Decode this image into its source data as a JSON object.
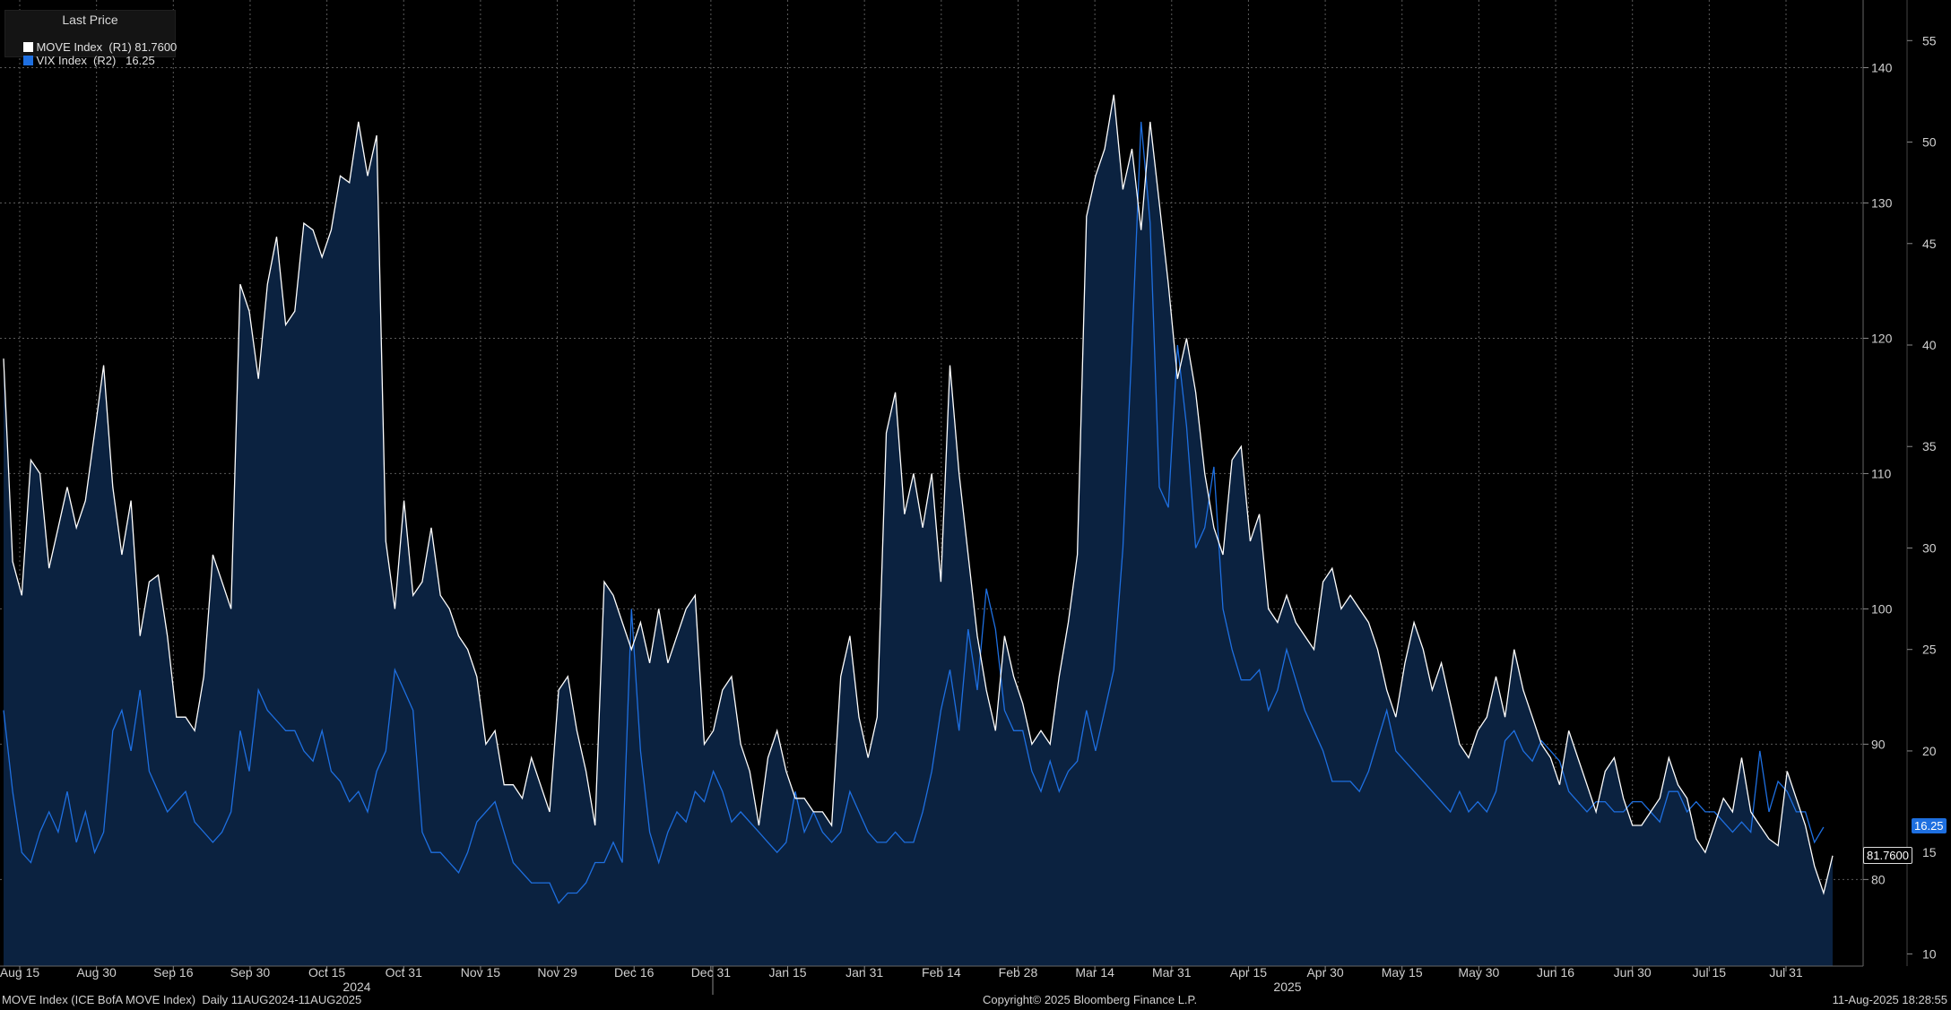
{
  "legend": {
    "title": "Last Price",
    "series": [
      {
        "label": "MOVE Index  (R1)",
        "value": "81.7600",
        "color": "#ffffff"
      },
      {
        "label": "VIX Index  (R2)",
        "value": "16.25",
        "color": "#1e6fe0"
      }
    ]
  },
  "footer": {
    "left": "MOVE Index (ICE BofA MOVE Index)  Daily 11AUG2024-11AUG2025",
    "center": "Copyright© 2025 Bloomberg Finance L.P.",
    "right": "11-Aug-2025 18:28:55"
  },
  "last_tags": {
    "move": "81.7600",
    "vix": "16.25"
  },
  "chart_data": {
    "type": "line",
    "x_tick_labels": [
      "Aug 15",
      "Aug 30",
      "Sep 16",
      "Sep 30",
      "Oct 15",
      "Oct 31",
      "Nov 15",
      "Nov 29",
      "Dec 16",
      "Dec 31",
      "Jan 15",
      "Jan 31",
      "Feb 14",
      "Feb 28",
      "Mar 14",
      "Mar 31",
      "Apr 15",
      "Apr 30",
      "May 15",
      "May 30",
      "Jun 16",
      "Jun 30",
      "Jul 15",
      "Jul 31"
    ],
    "year_labels": [
      "2024",
      "2025"
    ],
    "y_right1": {
      "ticks": [
        80,
        90,
        100,
        110,
        120,
        130,
        140
      ],
      "range": [
        73.6,
        145
      ]
    },
    "y_right2": {
      "ticks": [
        10,
        15,
        20,
        25,
        30,
        35,
        40,
        45,
        50,
        55
      ],
      "range": [
        9.4,
        57
      ]
    },
    "grid": true,
    "legend_position": "top-left",
    "colors": {
      "background": "#000000",
      "area": "#0b2240",
      "move": "#ffffff",
      "vix": "#1e6fe0"
    },
    "series": [
      {
        "name": "MOVE Index",
        "axis": "R1",
        "values": [
          118.5,
          103.5,
          101,
          111,
          110,
          103,
          106,
          109,
          106,
          108,
          113,
          118,
          109,
          104,
          108,
          98,
          102,
          102.5,
          98,
          92,
          92,
          91,
          95,
          104,
          102,
          100,
          124,
          122,
          117,
          124,
          127.5,
          121,
          122,
          128.5,
          128,
          126,
          128,
          132,
          131.5,
          136,
          132,
          135,
          105,
          100,
          108,
          101,
          102,
          106,
          101,
          100,
          98,
          97,
          95,
          90,
          91,
          87,
          87,
          86,
          89,
          87,
          85,
          94,
          95,
          91,
          88,
          84,
          102,
          101,
          99,
          97,
          99,
          96,
          100,
          96,
          98,
          100,
          101,
          90,
          91,
          94,
          95,
          90,
          88,
          84,
          89,
          91,
          88,
          86,
          86,
          85,
          85,
          84,
          95,
          98,
          92,
          89,
          92,
          113,
          116,
          107,
          110,
          106,
          110,
          102,
          118,
          110,
          104,
          98,
          94,
          91,
          98,
          95,
          93,
          90,
          91,
          90,
          95,
          99,
          104,
          129,
          132,
          134,
          138,
          131,
          134,
          128,
          136,
          130,
          124,
          117,
          120,
          116,
          110,
          106,
          104,
          111,
          112,
          105,
          107,
          100,
          99,
          101,
          99,
          98,
          97,
          102,
          103,
          100,
          101,
          100,
          99,
          97,
          94,
          92,
          96,
          99,
          97,
          94,
          96,
          93,
          90,
          89,
          91,
          92,
          95,
          92,
          97,
          94,
          92,
          90,
          89,
          87,
          91,
          89,
          87,
          85,
          88,
          89,
          86,
          84,
          84,
          85,
          86,
          89,
          87,
          86,
          83,
          82,
          84,
          86,
          85,
          89,
          85,
          84,
          83,
          82.5,
          88,
          86,
          84,
          81,
          79,
          81.76
        ]
      },
      {
        "name": "VIX Index",
        "axis": "R2",
        "values": [
          22,
          18,
          15,
          14.5,
          16,
          17,
          16,
          18,
          15.5,
          17,
          15,
          16,
          21,
          22,
          20,
          23,
          19,
          18,
          17,
          17.5,
          18,
          16.5,
          16,
          15.5,
          16,
          17,
          21,
          19,
          23,
          22,
          21.5,
          21,
          21,
          20,
          19.5,
          21,
          19,
          18.5,
          17.5,
          18,
          17,
          19,
          20,
          24,
          23,
          22,
          16,
          15,
          15,
          14.5,
          14,
          15,
          16.5,
          17,
          17.5,
          16,
          14.5,
          14,
          13.5,
          13.5,
          13.5,
          12.5,
          13,
          13,
          13.5,
          14.5,
          14.5,
          15.5,
          14.5,
          27,
          20,
          16,
          14.5,
          16,
          17,
          16.5,
          18,
          17.5,
          19,
          18,
          16.5,
          17,
          16.5,
          16,
          15.5,
          15,
          15.5,
          18,
          16,
          17,
          16,
          15.5,
          16,
          18,
          17,
          16,
          15.5,
          15.5,
          16,
          15.5,
          15.5,
          17,
          19,
          22,
          24,
          21,
          26,
          23,
          28,
          26,
          22,
          21,
          21,
          19,
          18,
          19.5,
          18,
          19,
          19.5,
          22,
          20,
          22,
          24,
          30,
          40,
          51,
          46,
          33,
          32,
          40,
          36,
          30,
          31,
          34,
          27,
          25,
          23.5,
          23.5,
          24,
          22,
          23,
          25,
          23.5,
          22,
          21,
          20,
          18.5,
          18.5,
          18.5,
          18,
          19,
          20.5,
          22,
          20,
          19.5,
          19,
          18.5,
          18,
          17.5,
          17,
          18,
          17,
          17.5,
          17,
          18,
          20.5,
          21,
          20,
          19.5,
          20.5,
          20,
          19.5,
          18,
          17.5,
          17,
          17.5,
          17.5,
          17,
          17,
          17.5,
          17.5,
          17,
          16.5,
          18,
          18,
          17,
          17.5,
          17,
          17,
          16.5,
          16,
          16.5,
          16,
          20,
          17,
          18.5,
          18,
          17,
          17,
          15.5,
          16.25
        ]
      }
    ]
  }
}
